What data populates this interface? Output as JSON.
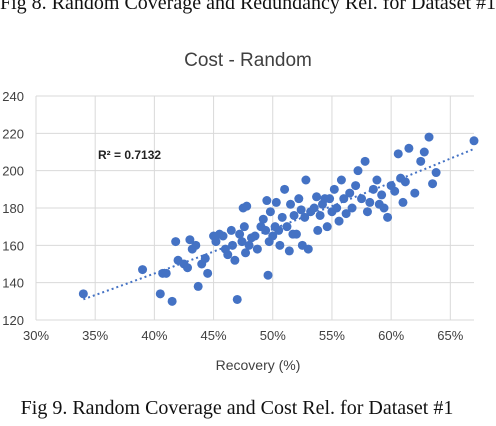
{
  "captions": {
    "top": "Fig 8. Random Coverage and Redundancy Rel. for Dataset #1",
    "bottom": "Fig 9. Random Coverage and Cost Rel. for Dataset #1"
  },
  "chart_data": {
    "type": "scatter",
    "title": "Cost - Random",
    "xlabel": "Recovery (%)",
    "ylabel": "",
    "xlim": [
      0.3,
      0.67
    ],
    "ylim": [
      120,
      240
    ],
    "x_ticks": [
      "30%",
      "35%",
      "40%",
      "45%",
      "50%",
      "55%",
      "60%",
      "65%"
    ],
    "y_ticks": [
      "120",
      "140",
      "160",
      "180",
      "200",
      "220",
      "240"
    ],
    "annotation": "R² = 0.7132",
    "grid": true,
    "marker_color": "#4472c4",
    "trendline": {
      "type": "polynomial",
      "style": "dotted",
      "color": "#4472c4"
    },
    "points": [
      [
        0.34,
        134
      ],
      [
        0.39,
        147
      ],
      [
        0.405,
        134
      ],
      [
        0.407,
        145
      ],
      [
        0.41,
        145
      ],
      [
        0.415,
        130
      ],
      [
        0.418,
        162
      ],
      [
        0.42,
        152
      ],
      [
        0.425,
        150
      ],
      [
        0.428,
        148
      ],
      [
        0.43,
        163
      ],
      [
        0.432,
        158
      ],
      [
        0.435,
        160
      ],
      [
        0.437,
        138
      ],
      [
        0.44,
        150
      ],
      [
        0.443,
        153
      ],
      [
        0.445,
        145
      ],
      [
        0.45,
        165
      ],
      [
        0.452,
        162
      ],
      [
        0.455,
        166
      ],
      [
        0.458,
        165
      ],
      [
        0.46,
        158
      ],
      [
        0.462,
        155
      ],
      [
        0.465,
        168
      ],
      [
        0.466,
        160
      ],
      [
        0.468,
        152
      ],
      [
        0.47,
        131
      ],
      [
        0.472,
        166
      ],
      [
        0.474,
        162
      ],
      [
        0.475,
        180
      ],
      [
        0.476,
        170
      ],
      [
        0.477,
        156
      ],
      [
        0.478,
        181
      ],
      [
        0.48,
        160
      ],
      [
        0.482,
        164
      ],
      [
        0.485,
        165
      ],
      [
        0.487,
        158
      ],
      [
        0.49,
        170
      ],
      [
        0.492,
        174
      ],
      [
        0.494,
        168
      ],
      [
        0.495,
        184
      ],
      [
        0.496,
        144
      ],
      [
        0.497,
        162
      ],
      [
        0.498,
        178
      ],
      [
        0.5,
        165
      ],
      [
        0.502,
        170
      ],
      [
        0.503,
        183
      ],
      [
        0.505,
        168
      ],
      [
        0.506,
        160
      ],
      [
        0.508,
        175
      ],
      [
        0.51,
        190
      ],
      [
        0.512,
        170
      ],
      [
        0.514,
        157
      ],
      [
        0.515,
        182
      ],
      [
        0.517,
        166
      ],
      [
        0.518,
        176
      ],
      [
        0.52,
        166
      ],
      [
        0.522,
        185
      ],
      [
        0.524,
        179
      ],
      [
        0.525,
        160
      ],
      [
        0.527,
        175
      ],
      [
        0.528,
        195
      ],
      [
        0.53,
        158
      ],
      [
        0.532,
        178
      ],
      [
        0.535,
        180
      ],
      [
        0.537,
        186
      ],
      [
        0.538,
        168
      ],
      [
        0.54,
        176
      ],
      [
        0.542,
        182
      ],
      [
        0.544,
        185
      ],
      [
        0.546,
        170
      ],
      [
        0.548,
        185
      ],
      [
        0.55,
        178
      ],
      [
        0.552,
        190
      ],
      [
        0.554,
        180
      ],
      [
        0.556,
        173
      ],
      [
        0.558,
        195
      ],
      [
        0.56,
        185
      ],
      [
        0.562,
        177
      ],
      [
        0.565,
        188
      ],
      [
        0.567,
        180
      ],
      [
        0.57,
        192
      ],
      [
        0.572,
        200
      ],
      [
        0.575,
        185
      ],
      [
        0.578,
        205
      ],
      [
        0.58,
        178
      ],
      [
        0.582,
        183
      ],
      [
        0.585,
        190
      ],
      [
        0.588,
        195
      ],
      [
        0.59,
        182
      ],
      [
        0.592,
        187
      ],
      [
        0.594,
        180
      ],
      [
        0.597,
        175
      ],
      [
        0.6,
        192
      ],
      [
        0.603,
        189
      ],
      [
        0.606,
        209
      ],
      [
        0.608,
        196
      ],
      [
        0.61,
        183
      ],
      [
        0.612,
        194
      ],
      [
        0.615,
        212
      ],
      [
        0.62,
        188
      ],
      [
        0.625,
        205
      ],
      [
        0.628,
        210
      ],
      [
        0.632,
        218
      ],
      [
        0.635,
        193
      ],
      [
        0.638,
        199
      ],
      [
        0.67,
        216
      ]
    ]
  }
}
